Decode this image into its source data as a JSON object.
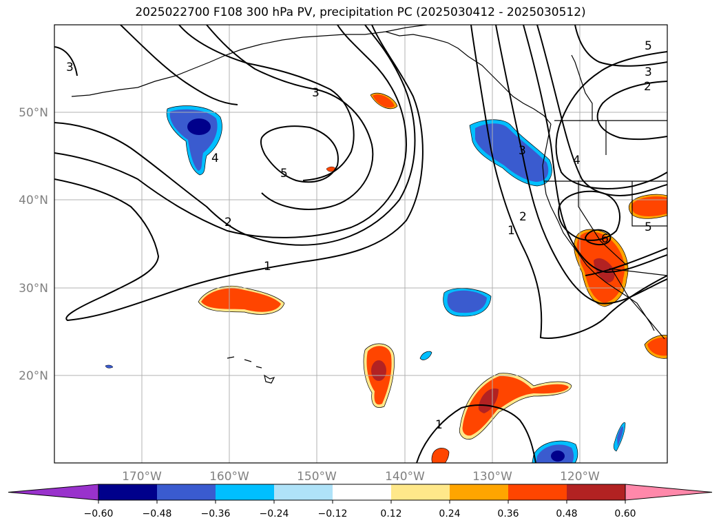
{
  "title": "2025022700 F108 300 hPa PV, precipitation PC (2025030412 - 2025030512)",
  "map": {
    "lon_ticks": [
      "170°W",
      "160°W",
      "150°W",
      "140°W",
      "130°W",
      "120°W"
    ],
    "lat_ticks": [
      "50°N",
      "40°N",
      "30°N",
      "20°N"
    ],
    "extent": {
      "lon": [
        -180,
        -110
      ],
      "lat": [
        10,
        60
      ]
    },
    "grid": true,
    "contour_labels": [
      "3",
      "3",
      "4",
      "5",
      "2",
      "1",
      "3",
      "4",
      "5",
      "2",
      "1",
      "2",
      "3",
      "6",
      "5",
      "1"
    ]
  },
  "colorbar": {
    "tick_labels": [
      "−0.60",
      "−0.48",
      "−0.36",
      "−0.24",
      "−0.12",
      "0.12",
      "0.24",
      "0.36",
      "0.48",
      "0.60"
    ],
    "colors": [
      "#9932cc",
      "#00008b",
      "#3a5bcf",
      "#00bfff",
      "#afe2f8",
      "#ffffff",
      "#ffe88a",
      "#ffa500",
      "#ff4500",
      "#b22222",
      "#ff88aa"
    ]
  }
}
